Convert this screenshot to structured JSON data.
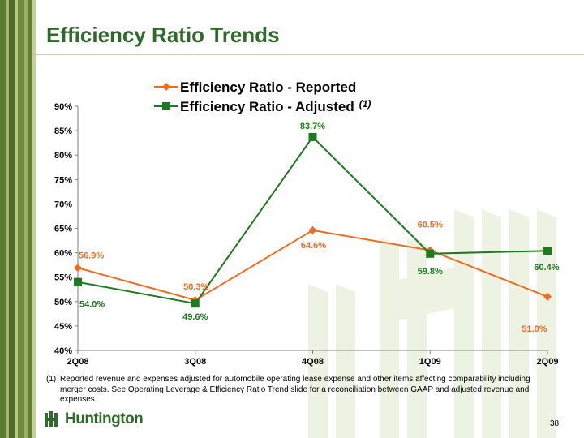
{
  "slide": {
    "title": "Efficiency Ratio Trends",
    "page_number": "38",
    "logo_text": "Huntington",
    "footnote_marker": "(1)",
    "footnote_text": "Reported revenue and expenses adjusted for automobile operating lease expense and other items affecting comparability including merger costs.  See Operating Leverage & Efficiency Ratio Trend slide for a reconciliation between GAAP and adjusted revenue and expenses."
  },
  "colors": {
    "brand_green": "#2f6a2c",
    "reported_series": "#f26b1d",
    "adjusted_series": "#1e7a1e",
    "stripe_dark": "#5b7a32",
    "stripe_light": "#a3b86a",
    "watermark": "#eef2e3"
  },
  "icons": {
    "logo_mark": "huntington-logo-icon"
  },
  "chart_data": {
    "type": "line",
    "categories": [
      "2Q08",
      "3Q08",
      "4Q08",
      "1Q09",
      "2Q09"
    ],
    "y_ticks": [
      "40%",
      "45%",
      "50%",
      "55%",
      "60%",
      "65%",
      "70%",
      "75%",
      "80%",
      "85%",
      "90%"
    ],
    "ylim": [
      40,
      90
    ],
    "grid": false,
    "legend_position": "top",
    "series": [
      {
        "name": "Efficiency Ratio - Reported",
        "name_superscript": "",
        "values": [
          56.9,
          50.3,
          64.6,
          60.5,
          51.0
        ],
        "labels": [
          "56.9%",
          "50.3%",
          "64.6%",
          "60.5%",
          "51.0%"
        ]
      },
      {
        "name": "Efficiency Ratio - Adjusted",
        "name_superscript": "(1)",
        "values": [
          54.0,
          49.6,
          83.7,
          59.8,
          60.4
        ],
        "labels": [
          "54.0%",
          "49.6%",
          "83.7%",
          "59.8%",
          "60.4%"
        ]
      }
    ]
  }
}
